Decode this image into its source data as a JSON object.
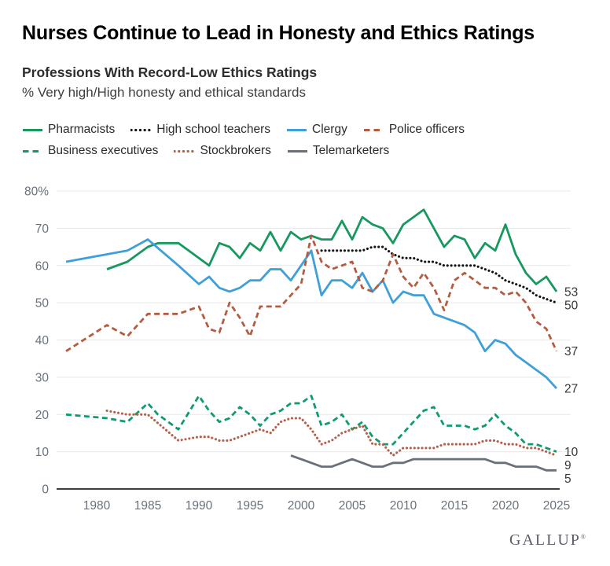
{
  "header": {
    "title": "Nurses Continue to Lead in Honesty and Ethics Ratings",
    "chart_title": "Professions With Record-Low Ethics Ratings",
    "measure": "% Very high/High honesty and ethical standards"
  },
  "footer": {
    "brand": "GALLUP",
    "registered_mark": "®"
  },
  "colors": {
    "background": "#ffffff",
    "grid": "#e8e8e8",
    "axis": "#3f3f3f",
    "tick_text": "#68727c",
    "end_label_text": "#383838",
    "title_text": "#000000",
    "subtitle_text": "#2d2d2d",
    "legend_text": "#2b2b2b",
    "brand_text": "#5a5e6a"
  },
  "chart_data": {
    "type": "line",
    "title": "Professions With Record-Low Ethics Ratings",
    "ylabel": "% Very high/High honesty and ethical standards",
    "xlabel": "",
    "xlim": [
      1976,
      2026
    ],
    "ylim": [
      0,
      80
    ],
    "grid": "horizontal-only",
    "legend_position": "top-left, two rows",
    "x_ticks": [
      1980,
      1985,
      1990,
      1995,
      2000,
      2005,
      2010,
      2015,
      2020,
      2025
    ],
    "y_ticks": [
      0,
      10,
      20,
      30,
      40,
      50,
      60,
      70,
      80
    ],
    "y_top_label": "80%",
    "series": [
      {
        "name": "Pharmacists",
        "color": "#17985f",
        "line_style": "solid",
        "end_label": "53",
        "points": [
          [
            1981,
            59
          ],
          [
            1983,
            61
          ],
          [
            1985,
            65
          ],
          [
            1986,
            66
          ],
          [
            1988,
            66
          ],
          [
            1990,
            62
          ],
          [
            1991,
            60
          ],
          [
            1992,
            66
          ],
          [
            1993,
            65
          ],
          [
            1994,
            62
          ],
          [
            1995,
            66
          ],
          [
            1996,
            64
          ],
          [
            1997,
            69
          ],
          [
            1998,
            64
          ],
          [
            1999,
            69
          ],
          [
            2000,
            67
          ],
          [
            2001,
            68
          ],
          [
            2002,
            67
          ],
          [
            2003,
            67
          ],
          [
            2004,
            72
          ],
          [
            2005,
            67
          ],
          [
            2006,
            73
          ],
          [
            2007,
            71
          ],
          [
            2008,
            70
          ],
          [
            2009,
            66
          ],
          [
            2010,
            71
          ],
          [
            2011,
            73
          ],
          [
            2012,
            75
          ],
          [
            2013,
            70
          ],
          [
            2014,
            65
          ],
          [
            2015,
            68
          ],
          [
            2016,
            67
          ],
          [
            2017,
            62
          ],
          [
            2018,
            66
          ],
          [
            2019,
            64
          ],
          [
            2020,
            71
          ],
          [
            2021,
            63
          ],
          [
            2022,
            58
          ],
          [
            2023,
            55
          ],
          [
            2024,
            57
          ],
          [
            2025,
            53
          ]
        ]
      },
      {
        "name": "High school teachers",
        "color": "#141414",
        "line_style": "dotted",
        "end_label": "50",
        "points": [
          [
            2002,
            64
          ],
          [
            2003,
            64
          ],
          [
            2004,
            64
          ],
          [
            2005,
            64
          ],
          [
            2006,
            64
          ],
          [
            2007,
            65
          ],
          [
            2008,
            65
          ],
          [
            2009,
            63
          ],
          [
            2010,
            62
          ],
          [
            2011,
            62
          ],
          [
            2012,
            61
          ],
          [
            2013,
            61
          ],
          [
            2014,
            60
          ],
          [
            2015,
            60
          ],
          [
            2016,
            60
          ],
          [
            2017,
            60
          ],
          [
            2018,
            59
          ],
          [
            2019,
            58
          ],
          [
            2020,
            56
          ],
          [
            2021,
            55
          ],
          [
            2022,
            54
          ],
          [
            2023,
            52
          ],
          [
            2024,
            51
          ],
          [
            2025,
            50
          ]
        ]
      },
      {
        "name": "Clergy",
        "color": "#3f9fd8",
        "line_style": "solid",
        "end_label": "27",
        "points": [
          [
            1977,
            61
          ],
          [
            1981,
            63
          ],
          [
            1983,
            64
          ],
          [
            1985,
            67
          ],
          [
            1988,
            60
          ],
          [
            1990,
            55
          ],
          [
            1991,
            57
          ],
          [
            1992,
            54
          ],
          [
            1993,
            53
          ],
          [
            1994,
            54
          ],
          [
            1995,
            56
          ],
          [
            1996,
            56
          ],
          [
            1997,
            59
          ],
          [
            1998,
            59
          ],
          [
            1999,
            56
          ],
          [
            2000,
            60
          ],
          [
            2001,
            64
          ],
          [
            2002,
            52
          ],
          [
            2003,
            56
          ],
          [
            2004,
            56
          ],
          [
            2005,
            54
          ],
          [
            2006,
            58
          ],
          [
            2007,
            53
          ],
          [
            2008,
            56
          ],
          [
            2009,
            50
          ],
          [
            2010,
            53
          ],
          [
            2011,
            52
          ],
          [
            2012,
            52
          ],
          [
            2013,
            47
          ],
          [
            2014,
            46
          ],
          [
            2015,
            45
          ],
          [
            2016,
            44
          ],
          [
            2017,
            42
          ],
          [
            2018,
            37
          ],
          [
            2019,
            40
          ],
          [
            2020,
            39
          ],
          [
            2021,
            36
          ],
          [
            2022,
            34
          ],
          [
            2023,
            32
          ],
          [
            2024,
            30
          ],
          [
            2025,
            27
          ]
        ]
      },
      {
        "name": "Police officers",
        "color": "#b45c40",
        "line_style": "dashed",
        "end_label": "37",
        "points": [
          [
            1977,
            37
          ],
          [
            1981,
            44
          ],
          [
            1983,
            41
          ],
          [
            1985,
            47
          ],
          [
            1988,
            47
          ],
          [
            1990,
            49
          ],
          [
            1991,
            43
          ],
          [
            1992,
            42
          ],
          [
            1993,
            50
          ],
          [
            1994,
            46
          ],
          [
            1995,
            41
          ],
          [
            1996,
            49
          ],
          [
            1997,
            49
          ],
          [
            1998,
            49
          ],
          [
            1999,
            52
          ],
          [
            2000,
            55
          ],
          [
            2001,
            68
          ],
          [
            2002,
            61
          ],
          [
            2003,
            59
          ],
          [
            2004,
            60
          ],
          [
            2005,
            61
          ],
          [
            2006,
            54
          ],
          [
            2007,
            53
          ],
          [
            2008,
            56
          ],
          [
            2009,
            63
          ],
          [
            2010,
            57
          ],
          [
            2011,
            54
          ],
          [
            2012,
            58
          ],
          [
            2013,
            54
          ],
          [
            2014,
            48
          ],
          [
            2015,
            56
          ],
          [
            2016,
            58
          ],
          [
            2017,
            56
          ],
          [
            2018,
            54
          ],
          [
            2019,
            54
          ],
          [
            2020,
            52
          ],
          [
            2021,
            53
          ],
          [
            2022,
            50
          ],
          [
            2023,
            45
          ],
          [
            2024,
            43
          ],
          [
            2025,
            37
          ]
        ]
      },
      {
        "name": "Business executives",
        "color": "#0e9b74",
        "line_style": "dashed",
        "end_label": "10",
        "points": [
          [
            1977,
            20
          ],
          [
            1981,
            19
          ],
          [
            1983,
            18
          ],
          [
            1985,
            23
          ],
          [
            1986,
            20
          ],
          [
            1988,
            16
          ],
          [
            1990,
            25
          ],
          [
            1991,
            21
          ],
          [
            1992,
            18
          ],
          [
            1993,
            19
          ],
          [
            1994,
            22
          ],
          [
            1995,
            20
          ],
          [
            1996,
            17
          ],
          [
            1997,
            20
          ],
          [
            1998,
            21
          ],
          [
            1999,
            23
          ],
          [
            2000,
            23
          ],
          [
            2001,
            25
          ],
          [
            2002,
            17
          ],
          [
            2003,
            18
          ],
          [
            2004,
            20
          ],
          [
            2005,
            16
          ],
          [
            2006,
            18
          ],
          [
            2007,
            14
          ],
          [
            2008,
            12
          ],
          [
            2009,
            12
          ],
          [
            2010,
            15
          ],
          [
            2011,
            18
          ],
          [
            2012,
            21
          ],
          [
            2013,
            22
          ],
          [
            2014,
            17
          ],
          [
            2015,
            17
          ],
          [
            2016,
            17
          ],
          [
            2017,
            16
          ],
          [
            2018,
            17
          ],
          [
            2019,
            20
          ],
          [
            2020,
            17
          ],
          [
            2021,
            15
          ],
          [
            2022,
            12
          ],
          [
            2023,
            12
          ],
          [
            2024,
            11
          ],
          [
            2025,
            10
          ]
        ]
      },
      {
        "name": "Stockbrokers",
        "color": "#b4604a",
        "line_style": "dotted",
        "end_label": "9",
        "points": [
          [
            1981,
            21
          ],
          [
            1983,
            20
          ],
          [
            1985,
            20
          ],
          [
            1988,
            13
          ],
          [
            1990,
            14
          ],
          [
            1991,
            14
          ],
          [
            1992,
            13
          ],
          [
            1993,
            13
          ],
          [
            1994,
            14
          ],
          [
            1995,
            15
          ],
          [
            1996,
            16
          ],
          [
            1997,
            15
          ],
          [
            1998,
            18
          ],
          [
            1999,
            19
          ],
          [
            2000,
            19
          ],
          [
            2001,
            16
          ],
          [
            2002,
            12
          ],
          [
            2003,
            13
          ],
          [
            2004,
            15
          ],
          [
            2005,
            16
          ],
          [
            2006,
            17
          ],
          [
            2007,
            12
          ],
          [
            2008,
            12
          ],
          [
            2009,
            9
          ],
          [
            2010,
            11
          ],
          [
            2011,
            11
          ],
          [
            2012,
            11
          ],
          [
            2013,
            11
          ],
          [
            2014,
            12
          ],
          [
            2015,
            12
          ],
          [
            2016,
            12
          ],
          [
            2017,
            12
          ],
          [
            2018,
            13
          ],
          [
            2019,
            13
          ],
          [
            2020,
            12
          ],
          [
            2021,
            12
          ],
          [
            2022,
            11
          ],
          [
            2023,
            11
          ],
          [
            2024,
            10
          ],
          [
            2025,
            9
          ]
        ]
      },
      {
        "name": "Telemarketers",
        "color": "#697079",
        "line_style": "solid",
        "end_label": "5",
        "points": [
          [
            1999,
            9
          ],
          [
            2000,
            8
          ],
          [
            2001,
            7
          ],
          [
            2002,
            6
          ],
          [
            2003,
            6
          ],
          [
            2004,
            7
          ],
          [
            2005,
            8
          ],
          [
            2006,
            7
          ],
          [
            2007,
            6
          ],
          [
            2008,
            6
          ],
          [
            2009,
            7
          ],
          [
            2010,
            7
          ],
          [
            2011,
            8
          ],
          [
            2012,
            8
          ],
          [
            2013,
            8
          ],
          [
            2014,
            8
          ],
          [
            2015,
            8
          ],
          [
            2016,
            8
          ],
          [
            2017,
            8
          ],
          [
            2018,
            8
          ],
          [
            2019,
            7
          ],
          [
            2020,
            7
          ],
          [
            2021,
            6
          ],
          [
            2022,
            6
          ],
          [
            2023,
            6
          ],
          [
            2024,
            5
          ],
          [
            2025,
            5
          ]
        ]
      }
    ]
  }
}
